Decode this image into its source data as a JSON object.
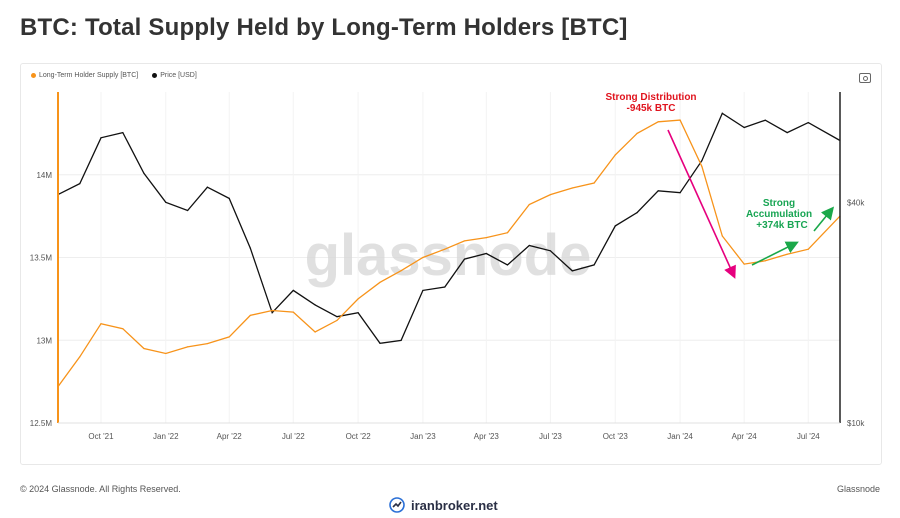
{
  "title": "BTC: Total Supply Held by Long-Term Holders [BTC]",
  "legend": {
    "lth": "Long-Term Holder Supply [BTC]",
    "price": "Price [USD]"
  },
  "colors": {
    "lth": "#f7931a",
    "price": "#111111",
    "distribution": "#e6007e",
    "accumulation": "#1aa84a",
    "annot_red": "#e0141e",
    "annot_green": "#18a553"
  },
  "watermark": "glassnode",
  "footer": {
    "copyright": "© 2024 Glassnode. All Rights Reserved.",
    "brand": "Glassnode"
  },
  "site": "iranbroker.net",
  "annotations": {
    "distribution": [
      "Strong Distribution",
      "-945k BTC"
    ],
    "accumulation": [
      "Strong",
      "Accumulation",
      "+374k BTC"
    ]
  },
  "chart_data": {
    "type": "line",
    "x_tick_labels": [
      "Oct '21",
      "Jan '22",
      "Apr '22",
      "Jul '22",
      "Oct '22",
      "Jan '23",
      "Apr '23",
      "Jul '23",
      "Oct '23",
      "Jan '24",
      "Apr '24",
      "Jul '24"
    ],
    "y_left_ticks": [
      "12.5M",
      "13M",
      "13.5M",
      "14M"
    ],
    "y_right_ticks": [
      "$10k",
      "$40k"
    ],
    "y_left_range": [
      12500000,
      14500000
    ],
    "y_right_scale": "log",
    "y_right_range": [
      10000,
      80000
    ],
    "series": [
      {
        "name": "Long-Term Holder Supply [BTC]",
        "axis": "left",
        "points": [
          [
            "2021-08-01",
            12.72
          ],
          [
            "2021-09-01",
            12.9
          ],
          [
            "2021-10-01",
            13.1
          ],
          [
            "2021-11-01",
            13.07
          ],
          [
            "2021-12-01",
            12.95
          ],
          [
            "2022-01-01",
            12.92
          ],
          [
            "2022-02-01",
            12.96
          ],
          [
            "2022-03-01",
            12.98
          ],
          [
            "2022-04-01",
            13.02
          ],
          [
            "2022-05-01",
            13.15
          ],
          [
            "2022-06-01",
            13.18
          ],
          [
            "2022-07-01",
            13.17
          ],
          [
            "2022-08-01",
            13.05
          ],
          [
            "2022-09-01",
            13.12
          ],
          [
            "2022-10-01",
            13.25
          ],
          [
            "2022-11-01",
            13.35
          ],
          [
            "2022-12-01",
            13.42
          ],
          [
            "2023-01-01",
            13.5
          ],
          [
            "2023-02-01",
            13.55
          ],
          [
            "2023-03-01",
            13.6
          ],
          [
            "2023-04-01",
            13.62
          ],
          [
            "2023-05-01",
            13.65
          ],
          [
            "2023-06-01",
            13.82
          ],
          [
            "2023-07-01",
            13.88
          ],
          [
            "2023-08-01",
            13.92
          ],
          [
            "2023-09-01",
            13.95
          ],
          [
            "2023-10-01",
            14.12
          ],
          [
            "2023-11-01",
            14.25
          ],
          [
            "2023-12-01",
            14.32
          ],
          [
            "2024-01-01",
            14.33
          ],
          [
            "2024-02-01",
            14.05
          ],
          [
            "2024-03-01",
            13.63
          ],
          [
            "2024-04-01",
            13.46
          ],
          [
            "2024-05-01",
            13.48
          ],
          [
            "2024-06-01",
            13.52
          ],
          [
            "2024-07-01",
            13.55
          ],
          [
            "2024-08-15",
            13.75
          ]
        ]
      },
      {
        "name": "Price [USD]",
        "axis": "right",
        "points": [
          [
            "2021-08-01",
            42000
          ],
          [
            "2021-09-01",
            45000
          ],
          [
            "2021-10-01",
            60000
          ],
          [
            "2021-11-01",
            62000
          ],
          [
            "2021-12-01",
            48000
          ],
          [
            "2022-01-01",
            40000
          ],
          [
            "2022-02-01",
            38000
          ],
          [
            "2022-03-01",
            44000
          ],
          [
            "2022-04-01",
            41000
          ],
          [
            "2022-05-01",
            30000
          ],
          [
            "2022-06-01",
            20000
          ],
          [
            "2022-07-01",
            23000
          ],
          [
            "2022-08-01",
            21000
          ],
          [
            "2022-09-01",
            19500
          ],
          [
            "2022-10-01",
            20000
          ],
          [
            "2022-11-01",
            16500
          ],
          [
            "2022-12-01",
            16800
          ],
          [
            "2023-01-01",
            23000
          ],
          [
            "2023-02-01",
            23500
          ],
          [
            "2023-03-01",
            28000
          ],
          [
            "2023-04-01",
            29000
          ],
          [
            "2023-05-01",
            27000
          ],
          [
            "2023-06-01",
            30500
          ],
          [
            "2023-07-01",
            29500
          ],
          [
            "2023-08-01",
            26000
          ],
          [
            "2023-09-01",
            27000
          ],
          [
            "2023-10-01",
            34500
          ],
          [
            "2023-11-01",
            37500
          ],
          [
            "2023-12-01",
            43000
          ],
          [
            "2024-01-01",
            42500
          ],
          [
            "2024-02-01",
            52000
          ],
          [
            "2024-03-01",
            70000
          ],
          [
            "2024-04-01",
            64000
          ],
          [
            "2024-05-01",
            67000
          ],
          [
            "2024-06-01",
            62000
          ],
          [
            "2024-07-01",
            66000
          ],
          [
            "2024-08-15",
            59000
          ]
        ]
      }
    ]
  }
}
